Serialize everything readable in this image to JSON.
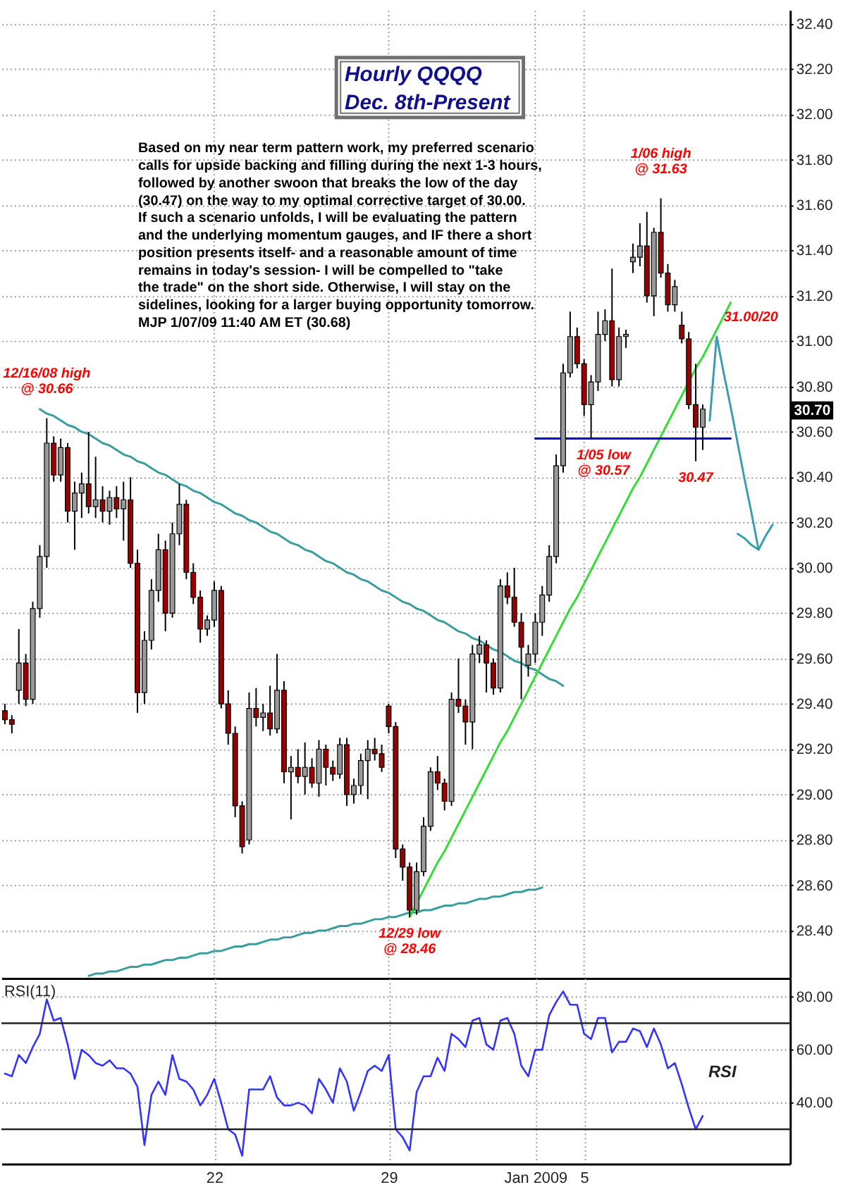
{
  "chart_data": [
    {
      "type": "candlestick",
      "title": "Hourly QQQQ",
      "subtitle": "Dec. 8th-Present",
      "categories": [
        null,
        null,
        null,
        null,
        null,
        null,
        null,
        null,
        null,
        null,
        null,
        null,
        null,
        null,
        null,
        null,
        null,
        null,
        null,
        null,
        null,
        null,
        null,
        null,
        null,
        null,
        null,
        null,
        null,
        null,
        null,
        null,
        null,
        null,
        null,
        null,
        null,
        null,
        null,
        null,
        null,
        null,
        null,
        null,
        null,
        null,
        null,
        null,
        null,
        null,
        null,
        null,
        null,
        null,
        null,
        null,
        null,
        null,
        null,
        null,
        null,
        null,
        null,
        null,
        null,
        null,
        null,
        null,
        null,
        null,
        null,
        null,
        null,
        null,
        null,
        null,
        null,
        null,
        null,
        null,
        null,
        null,
        null,
        null,
        null,
        null,
        null,
        null,
        null,
        null,
        null,
        null,
        null,
        null,
        null,
        null,
        null,
        null,
        null,
        null,
        null,
        null,
        null,
        null,
        null,
        null,
        null,
        null,
        null,
        null,
        null,
        null,
        null
      ],
      "ohlc": [
        [
          29.37,
          29.4,
          29.31,
          29.33
        ],
        [
          29.33,
          29.35,
          29.27,
          29.31
        ],
        [
          29.46,
          29.73,
          29.4,
          29.58
        ],
        [
          29.58,
          29.62,
          29.39,
          29.42
        ],
        [
          29.42,
          29.85,
          29.4,
          29.82
        ],
        [
          29.82,
          30.1,
          29.78,
          30.05
        ],
        [
          30.05,
          30.66,
          30.0,
          30.55
        ],
        [
          30.55,
          30.58,
          30.38,
          30.41
        ],
        [
          30.41,
          30.57,
          30.38,
          30.53
        ],
        [
          30.53,
          30.55,
          30.2,
          30.25
        ],
        [
          30.25,
          30.38,
          30.08,
          30.33
        ],
        [
          30.33,
          30.42,
          30.22,
          30.37
        ],
        [
          30.37,
          30.6,
          30.24,
          30.27
        ],
        [
          30.27,
          30.49,
          30.22,
          30.3
        ],
        [
          30.3,
          30.36,
          30.2,
          30.25
        ],
        [
          30.25,
          30.34,
          30.19,
          30.31
        ],
        [
          30.31,
          30.36,
          30.22,
          30.26
        ],
        [
          30.26,
          30.38,
          30.12,
          30.3
        ],
        [
          30.3,
          30.4,
          30.0,
          30.02
        ],
        [
          30.02,
          30.08,
          29.36,
          29.45
        ],
        [
          29.45,
          29.72,
          29.4,
          29.68
        ],
        [
          29.68,
          29.95,
          29.64,
          29.9
        ],
        [
          29.9,
          30.15,
          29.85,
          30.08
        ],
        [
          30.08,
          30.12,
          29.72,
          29.8
        ],
        [
          29.8,
          30.2,
          29.78,
          30.15
        ],
        [
          30.15,
          30.37,
          30.1,
          30.28
        ],
        [
          30.28,
          30.3,
          29.95,
          29.98
        ],
        [
          29.98,
          30.02,
          29.84,
          29.87
        ],
        [
          29.87,
          29.9,
          29.67,
          29.73
        ],
        [
          29.73,
          29.79,
          29.7,
          29.77
        ],
        [
          29.77,
          29.94,
          29.74,
          29.9
        ],
        [
          29.9,
          29.92,
          29.38,
          29.4
        ],
        [
          29.4,
          29.46,
          29.22,
          29.27
        ],
        [
          29.27,
          29.3,
          28.9,
          28.95
        ],
        [
          28.95,
          28.97,
          28.74,
          28.77
        ],
        [
          28.8,
          29.45,
          28.78,
          29.38
        ],
        [
          29.38,
          29.47,
          29.3,
          29.34
        ],
        [
          29.34,
          29.4,
          29.28,
          29.36
        ],
        [
          29.36,
          29.48,
          29.26,
          29.29
        ],
        [
          29.29,
          29.62,
          29.27,
          29.46
        ],
        [
          29.46,
          29.5,
          29.05,
          29.1
        ],
        [
          29.1,
          29.17,
          28.89,
          29.12
        ],
        [
          29.12,
          29.2,
          29.05,
          29.08
        ],
        [
          29.08,
          29.23,
          29.0,
          29.12
        ],
        [
          29.12,
          29.16,
          29.03,
          29.05
        ],
        [
          29.05,
          29.24,
          28.99,
          29.2
        ],
        [
          29.2,
          29.22,
          29.04,
          29.12
        ],
        [
          29.12,
          29.15,
          29.06,
          29.09
        ],
        [
          29.09,
          29.25,
          29.07,
          29.22
        ],
        [
          29.22,
          29.25,
          28.95,
          29.0
        ],
        [
          29.0,
          29.07,
          28.96,
          29.04
        ],
        [
          29.04,
          29.18,
          29.0,
          29.15
        ],
        [
          29.15,
          29.24,
          28.98,
          29.2
        ],
        [
          29.2,
          29.25,
          29.15,
          29.18
        ],
        [
          29.18,
          29.22,
          29.1,
          29.12
        ],
        [
          29.39,
          29.4,
          29.27,
          29.3
        ],
        [
          29.3,
          29.32,
          28.72,
          28.76
        ],
        [
          28.76,
          28.78,
          28.62,
          28.68
        ],
        [
          28.68,
          28.7,
          28.46,
          28.49
        ],
        [
          28.49,
          28.7,
          28.47,
          28.66
        ],
        [
          28.66,
          28.9,
          28.64,
          28.86
        ],
        [
          28.86,
          29.12,
          28.84,
          29.1
        ],
        [
          29.1,
          29.17,
          29.02,
          29.05
        ],
        [
          29.05,
          29.07,
          28.93,
          28.97
        ],
        [
          28.97,
          29.45,
          28.95,
          29.42
        ],
        [
          29.42,
          29.6,
          29.36,
          29.39
        ],
        [
          29.39,
          29.42,
          29.22,
          29.32
        ],
        [
          29.32,
          29.66,
          29.2,
          29.62
        ],
        [
          29.62,
          29.7,
          29.58,
          29.66
        ],
        [
          29.66,
          29.68,
          29.45,
          29.58
        ],
        [
          29.58,
          29.6,
          29.44,
          29.47
        ],
        [
          29.47,
          29.95,
          29.45,
          29.92
        ],
        [
          29.92,
          29.98,
          29.84,
          29.87
        ],
        [
          29.87,
          30.0,
          29.74,
          29.76
        ],
        [
          29.76,
          29.8,
          29.42,
          29.65
        ],
        [
          29.57,
          29.66,
          29.52,
          29.62
        ],
        [
          29.62,
          29.8,
          29.58,
          29.76
        ],
        [
          29.76,
          29.92,
          29.7,
          29.88
        ],
        [
          29.88,
          30.1,
          29.85,
          30.05
        ],
        [
          30.05,
          30.5,
          30.02,
          30.45
        ],
        [
          30.45,
          30.9,
          30.42,
          30.86
        ],
        [
          30.86,
          31.13,
          30.84,
          31.02
        ],
        [
          31.02,
          31.06,
          30.88,
          30.9
        ],
        [
          30.9,
          30.92,
          30.67,
          30.72
        ],
        [
          30.72,
          30.85,
          30.57,
          30.82
        ],
        [
          30.82,
          31.13,
          30.78,
          31.03
        ],
        [
          31.03,
          31.14,
          31.0,
          31.09
        ],
        [
          31.09,
          31.32,
          30.8,
          30.83
        ],
        [
          30.83,
          31.06,
          30.8,
          31.02
        ],
        [
          31.02,
          31.05,
          30.97,
          31.03
        ],
        [
          31.35,
          31.43,
          31.3,
          31.37
        ],
        [
          31.37,
          31.52,
          31.33,
          31.42
        ],
        [
          31.42,
          31.57,
          31.17,
          31.2
        ],
        [
          31.2,
          31.5,
          31.11,
          31.48
        ],
        [
          31.48,
          31.63,
          31.28,
          31.3
        ],
        [
          31.3,
          31.34,
          31.13,
          31.16
        ],
        [
          31.16,
          31.27,
          31.13,
          31.24
        ],
        [
          31.07,
          31.13,
          30.99,
          31.01
        ],
        [
          31.01,
          31.04,
          30.7,
          30.72
        ],
        [
          30.72,
          30.9,
          30.47,
          30.62
        ],
        [
          30.62,
          30.72,
          30.52,
          30.7
        ],
        null,
        null,
        null,
        null,
        null,
        null,
        null,
        null,
        null,
        null,
        null,
        null
      ],
      "colors": [
        "#990000",
        "#990000",
        "#999999",
        "#990000",
        "#999999",
        "#999999",
        "#999999",
        "#990000",
        "#999999",
        "#990000",
        "#999999",
        "#999999",
        "#990000",
        "#999999",
        "#990000",
        "#999999",
        "#990000",
        "#999999",
        "#990000",
        "#990000",
        "#999999",
        "#999999",
        "#999999",
        "#990000",
        "#999999",
        "#999999",
        "#990000",
        "#990000",
        "#990000",
        "#999999",
        "#999999",
        "#990000",
        "#990000",
        "#990000",
        "#990000",
        "#999999",
        "#990000",
        "#999999",
        "#990000",
        "#999999",
        "#990000",
        "#999999",
        "#990000",
        "#999999",
        "#990000",
        "#999999",
        "#990000",
        "#990000",
        "#999999",
        "#990000",
        "#999999",
        "#999999",
        "#999999",
        "#990000",
        "#990000",
        "#990000",
        "#990000",
        "#990000",
        "#990000",
        "#999999",
        "#999999",
        "#999999",
        "#990000",
        "#990000",
        "#999999",
        "#990000",
        "#990000",
        "#999999",
        "#999999",
        "#990000",
        "#990000",
        "#999999",
        "#990000",
        "#990000",
        "#990000",
        "#999999",
        "#999999",
        "#999999",
        "#999999",
        "#999999",
        "#999999",
        "#999999",
        "#990000",
        "#990000",
        "#999999",
        "#999999",
        "#999999",
        "#990000",
        "#999999",
        "#999999",
        "#999999",
        "#999999",
        "#990000",
        "#999999",
        "#990000",
        "#990000",
        "#999999",
        "#990000",
        "#990000",
        "#990000",
        "#999999",
        null,
        null,
        null,
        null,
        null,
        null,
        null,
        null,
        null,
        null,
        null,
        null
      ],
      "ylim": [
        28.19,
        32.46
      ],
      "yticks": [
        {
          "value": 28.4,
          "label": "28.40"
        },
        {
          "value": 28.6,
          "label": "28.60"
        },
        {
          "value": 28.8,
          "label": "28.80"
        },
        {
          "value": 29.0,
          "label": "29.00"
        },
        {
          "value": 29.2,
          "label": "29.20"
        },
        {
          "value": 29.4,
          "label": "29.40"
        },
        {
          "value": 29.6,
          "label": "29.60"
        },
        {
          "value": 29.8,
          "label": "29.80"
        },
        {
          "value": 30.0,
          "label": "30.00"
        },
        {
          "value": 30.2,
          "label": "30.20"
        },
        {
          "value": 30.4,
          "label": "30.40"
        },
        {
          "value": 30.6,
          "label": "30.60"
        },
        {
          "value": 30.8,
          "label": "30.80"
        },
        {
          "value": 31.0,
          "label": "31.00"
        },
        {
          "value": 31.2,
          "label": "31.20"
        },
        {
          "value": 31.4,
          "label": "31.40"
        },
        {
          "value": 31.6,
          "label": "31.60"
        },
        {
          "value": 31.8,
          "label": "31.80"
        },
        {
          "value": 32.0,
          "label": "32.00"
        },
        {
          "value": 32.2,
          "label": "32.20"
        },
        {
          "value": 32.4,
          "label": "32.40"
        }
      ],
      "tick_labels": "y",
      "grid": true,
      "series": [
        {
          "type": "line",
          "color": "#3a9d9d",
          "values": [
            null,
            null,
            null,
            null,
            null,
            30.7,
            30.68,
            30.67,
            30.65,
            30.63,
            30.62,
            30.6,
            30.59,
            30.57,
            30.55,
            30.54,
            30.52,
            30.5,
            30.49,
            30.47,
            30.46,
            30.44,
            30.42,
            30.41,
            30.39,
            30.37,
            30.36,
            30.34,
            30.33,
            30.31,
            30.29,
            30.28,
            30.26,
            30.24,
            30.23,
            30.21,
            30.2,
            30.18,
            30.16,
            30.15,
            30.13,
            30.11,
            30.1,
            30.08,
            30.07,
            30.05,
            30.03,
            30.02,
            30.0,
            29.98,
            29.97,
            29.95,
            29.94,
            29.92,
            29.9,
            29.89,
            29.87,
            29.85,
            29.84,
            29.82,
            29.81,
            29.79,
            29.77,
            29.76,
            29.74,
            29.72,
            29.71,
            29.69,
            29.68,
            29.66,
            29.64,
            29.63,
            29.61,
            29.59,
            29.58,
            29.56,
            29.55,
            29.53,
            29.51,
            29.5,
            29.48,
            null,
            null,
            null,
            null,
            null,
            null,
            null,
            null,
            null,
            null,
            null,
            null,
            null,
            null,
            null,
            null,
            null,
            null,
            null,
            null,
            null,
            null,
            null,
            null,
            null,
            null,
            null,
            null,
            null,
            null,
            null,
            null
          ]
        },
        {
          "type": "line",
          "color": "#3a9d9d",
          "values": [
            null,
            null,
            null,
            null,
            null,
            null,
            null,
            null,
            null,
            null,
            null,
            null,
            28.2,
            28.21,
            28.21,
            28.22,
            28.22,
            28.23,
            28.24,
            28.24,
            28.25,
            28.25,
            28.26,
            28.27,
            28.27,
            28.28,
            28.28,
            28.29,
            28.3,
            28.3,
            28.31,
            28.31,
            28.32,
            28.33,
            28.33,
            28.34,
            28.34,
            28.35,
            28.36,
            28.36,
            28.37,
            28.37,
            28.38,
            28.39,
            28.39,
            28.4,
            28.4,
            28.41,
            28.42,
            28.42,
            28.43,
            28.43,
            28.44,
            28.45,
            28.45,
            28.46,
            28.46,
            28.47,
            28.48,
            28.48,
            28.49,
            28.49,
            28.5,
            28.51,
            28.51,
            28.52,
            28.52,
            28.53,
            28.54,
            28.54,
            28.55,
            28.55,
            28.56,
            28.57,
            28.57,
            28.58,
            28.58,
            28.59,
            null,
            null,
            null,
            null,
            null,
            null,
            null,
            null,
            null,
            null,
            null,
            null,
            null,
            null,
            null,
            null,
            null,
            null,
            null,
            null,
            null,
            null,
            null,
            null,
            null,
            null,
            null,
            null,
            null,
            null,
            null,
            null,
            null,
            null,
            null
          ]
        },
        {
          "type": "line",
          "color": "#33dd33",
          "values": [
            null,
            null,
            null,
            null,
            null,
            null,
            null,
            null,
            null,
            null,
            null,
            null,
            null,
            null,
            null,
            null,
            null,
            null,
            null,
            null,
            null,
            null,
            null,
            null,
            null,
            null,
            null,
            null,
            null,
            null,
            null,
            null,
            null,
            null,
            null,
            null,
            null,
            null,
            null,
            null,
            null,
            null,
            null,
            null,
            null,
            null,
            null,
            null,
            null,
            null,
            null,
            null,
            null,
            null,
            null,
            null,
            null,
            null,
            28.46,
            28.52,
            28.58,
            28.64,
            28.7,
            28.75,
            28.81,
            28.87,
            28.93,
            28.99,
            29.05,
            29.11,
            29.17,
            29.23,
            29.28,
            29.34,
            29.4,
            29.46,
            29.52,
            29.58,
            29.64,
            29.7,
            29.76,
            29.82,
            29.87,
            29.93,
            29.99,
            30.05,
            30.11,
            30.17,
            30.23,
            30.29,
            30.35,
            30.4,
            30.46,
            30.52,
            30.58,
            30.64,
            30.7,
            30.76,
            30.82,
            30.88,
            30.93,
            30.99,
            31.05,
            31.11,
            31.17,
            null,
            null,
            null,
            null,
            null,
            null,
            null,
            null
          ]
        },
        {
          "type": "line",
          "color": "#0000cc",
          "values": [
            null,
            null,
            null,
            null,
            null,
            null,
            null,
            null,
            null,
            null,
            null,
            null,
            null,
            null,
            null,
            null,
            null,
            null,
            null,
            null,
            null,
            null,
            null,
            null,
            null,
            null,
            null,
            null,
            null,
            null,
            null,
            null,
            null,
            null,
            null,
            null,
            null,
            null,
            null,
            null,
            null,
            null,
            null,
            null,
            null,
            null,
            null,
            null,
            null,
            null,
            null,
            null,
            null,
            null,
            null,
            null,
            null,
            null,
            null,
            null,
            null,
            null,
            null,
            null,
            null,
            null,
            null,
            null,
            null,
            null,
            null,
            null,
            null,
            null,
            null,
            null,
            30.57,
            30.57,
            30.57,
            30.57,
            30.57,
            30.57,
            30.57,
            30.57,
            30.57,
            30.57,
            30.57,
            30.57,
            30.57,
            30.57,
            30.57,
            30.57,
            30.57,
            30.57,
            30.57,
            30.57,
            30.57,
            30.57,
            30.57,
            30.57,
            30.57,
            30.57,
            30.57,
            30.57,
            30.57,
            null,
            null,
            null,
            null,
            null,
            null,
            null,
            null
          ]
        },
        {
          "type": "line",
          "color": "#3a9db0",
          "values": [
            null,
            null,
            null,
            null,
            null,
            null,
            null,
            null,
            null,
            null,
            null,
            null,
            null,
            null,
            null,
            null,
            null,
            null,
            null,
            null,
            null,
            null,
            null,
            null,
            null,
            null,
            null,
            null,
            null,
            null,
            null,
            null,
            null,
            null,
            null,
            null,
            null,
            null,
            null,
            null,
            null,
            null,
            null,
            null,
            null,
            null,
            null,
            null,
            null,
            null,
            null,
            null,
            null,
            null,
            null,
            null,
            null,
            null,
            null,
            null,
            null,
            null,
            null,
            null,
            null,
            null,
            null,
            null,
            null,
            null,
            null,
            null,
            null,
            null,
            null,
            null,
            null,
            null,
            null,
            null,
            null,
            null,
            null,
            null,
            null,
            null,
            null,
            null,
            null,
            null,
            null,
            null,
            null,
            null,
            null,
            null,
            null,
            null,
            null,
            null,
            null,
            30.65,
            31.02,
            30.86,
            30.71,
            30.55,
            30.39,
            30.24,
            30.08,
            null,
            null,
            null,
            null
          ]
        },
        {
          "type": "line",
          "color": "#3a9db0",
          "values": [
            null,
            null,
            null,
            null,
            null,
            null,
            null,
            null,
            null,
            null,
            null,
            null,
            null,
            null,
            null,
            null,
            null,
            null,
            null,
            null,
            null,
            null,
            null,
            null,
            null,
            null,
            null,
            null,
            null,
            null,
            null,
            null,
            null,
            null,
            null,
            null,
            null,
            null,
            null,
            null,
            null,
            null,
            null,
            null,
            null,
            null,
            null,
            null,
            null,
            null,
            null,
            null,
            null,
            null,
            null,
            null,
            null,
            null,
            null,
            null,
            null,
            null,
            null,
            null,
            null,
            null,
            null,
            null,
            null,
            null,
            null,
            null,
            null,
            null,
            null,
            null,
            null,
            null,
            null,
            null,
            null,
            null,
            null,
            null,
            null,
            null,
            null,
            null,
            null,
            null,
            null,
            null,
            null,
            null,
            null,
            null,
            null,
            null,
            null,
            null,
            null,
            null,
            null,
            null,
            null,
            30.15,
            30.13,
            30.1,
            30.08,
            30.14,
            30.19,
            null,
            null
          ]
        }
      ],
      "annotations": [
        "Based on my near term pattern work, my preferred scenario\ncalls for upside backing and filling during the next 1-3 hours,\nfollowed by another swoon that breaks the low of the day\n(30.47) on the way to my optimal corrective target of 30.00.\nIf such a scenario unfolds, I will be evaluating the pattern\nand the underlying momentum gauges, and IF there a short\nposition presents itself- and a reasonable amount of time\nremains in today's session- I will be compelled to \"take\nthe trade\" on the short side.  Otherwise, I will stay on the\nsidelines, looking for a larger buying opportunity tomorrow.\nMJP 1/07/09 11:40 AM ET  (30.68)",
        "31.00/20",
        "30.70",
        {
          "text": "12/16/08 high\n@ 30.66",
          "y": 30.66
        },
        {
          "text": "1/06 high\n@ 31.63",
          "y": 31.63
        },
        {
          "text": "1/05 low\n@ 30.57",
          "y": 30.57
        },
        {
          "text": "12/29 low\n@ 28.46",
          "y": 28.46
        },
        {
          "text": "30.47",
          "y": 30.47
        }
      ]
    },
    {
      "type": "line",
      "title": "RSI(11)",
      "categories": [
        null,
        null,
        null,
        null,
        null,
        null,
        null,
        null,
        null,
        null,
        null,
        null,
        null,
        null,
        null,
        null,
        null,
        null,
        null,
        null,
        null,
        null,
        null,
        null,
        null,
        null,
        null,
        null,
        null,
        null,
        "22",
        null,
        null,
        null,
        null,
        null,
        null,
        null,
        null,
        null,
        null,
        null,
        null,
        null,
        null,
        null,
        null,
        null,
        null,
        null,
        null,
        null,
        null,
        null,
        null,
        "29",
        null,
        null,
        null,
        null,
        null,
        null,
        null,
        null,
        null,
        null,
        null,
        null,
        null,
        null,
        null,
        null,
        null,
        null,
        null,
        null,
        "Jan 2009",
        null,
        null,
        null,
        null,
        null,
        null,
        "5",
        null,
        null,
        null,
        null,
        null,
        null,
        null,
        null,
        null,
        null,
        null,
        null,
        null,
        null,
        null,
        null,
        null,
        null,
        null,
        null,
        null,
        null,
        null,
        null,
        null,
        null,
        null,
        null,
        null
      ],
      "series": [
        {
          "name": "RSI",
          "color": "#3333ff",
          "values": [
            51,
            50,
            58,
            55,
            61,
            66,
            79,
            71,
            72,
            62,
            49,
            60,
            58,
            55,
            54,
            56,
            53,
            53,
            51,
            46,
            24,
            43,
            48,
            43,
            58,
            49,
            48,
            45,
            39,
            43,
            49,
            40,
            30,
            28,
            20,
            45,
            45,
            45,
            50,
            42,
            39,
            39,
            40,
            39,
            36,
            49,
            45,
            40,
            53,
            48,
            37,
            44,
            52,
            54,
            52,
            58,
            30,
            27,
            22,
            44,
            50,
            50,
            57,
            52,
            66,
            64,
            61,
            71,
            72,
            62,
            60,
            71,
            72,
            66,
            54,
            50,
            60,
            60,
            73,
            78,
            82,
            77,
            77,
            66,
            64,
            72,
            72,
            59,
            63,
            63,
            68,
            67,
            61,
            68,
            62,
            53,
            55,
            47,
            38,
            30,
            35,
            null,
            null,
            null,
            null,
            null,
            null,
            null,
            null,
            null,
            null,
            null,
            null
          ]
        }
      ],
      "ylim": [
        17,
        87
      ],
      "yticks": [
        {
          "value": 40,
          "label": "40.00"
        },
        {
          "value": 60,
          "label": "60.00"
        },
        {
          "value": 80,
          "label": "80.00"
        }
      ],
      "grid": true,
      "ref_lines": [
        {
          "axis": "y",
          "value": 70,
          "color": "#222222"
        },
        {
          "axis": "y",
          "value": 30,
          "color": "#222222"
        }
      ]
    }
  ]
}
